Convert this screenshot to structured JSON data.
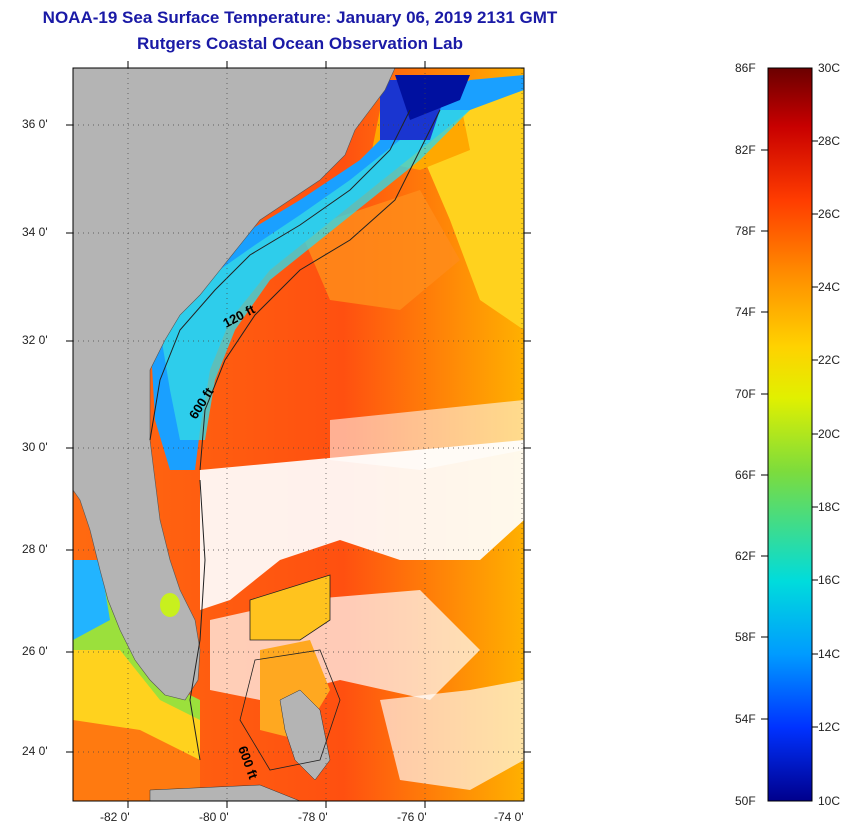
{
  "header": {
    "title": "NOAA-19 Sea Surface Temperature:  January 06, 2019 2131 GMT",
    "subtitle": "Rutgers Coastal Ocean Observation Lab"
  },
  "map": {
    "lat_labels": [
      "36 0'",
      "34 0'",
      "32 0'",
      "30 0'",
      "28 0'",
      "26 0'",
      "24 0'"
    ],
    "lon_labels": [
      "-82 0'",
      "-80 0'",
      "-78 0'",
      "-76 0'",
      "-74 0'"
    ],
    "contour_labels": [
      "120 ft",
      "600 ft",
      "600 ft"
    ],
    "colors": {
      "land": "#b4b4b4",
      "cloud": "#ffffff"
    }
  },
  "colorbar": {
    "fahrenheit": [
      "86F",
      "82F",
      "78F",
      "74F",
      "70F",
      "66F",
      "62F",
      "58F",
      "54F",
      "50F"
    ],
    "celsius": [
      "30C",
      "28C",
      "26C",
      "24C",
      "22C",
      "20C",
      "18C",
      "16C",
      "14C",
      "12C",
      "10C"
    ],
    "colors": [
      "#6b0000",
      "#c80000",
      "#ff3c00",
      "#ff8c00",
      "#ffd200",
      "#e1f000",
      "#7ddc3c",
      "#00dcdc",
      "#009bff",
      "#0032ff",
      "#00008c"
    ]
  }
}
